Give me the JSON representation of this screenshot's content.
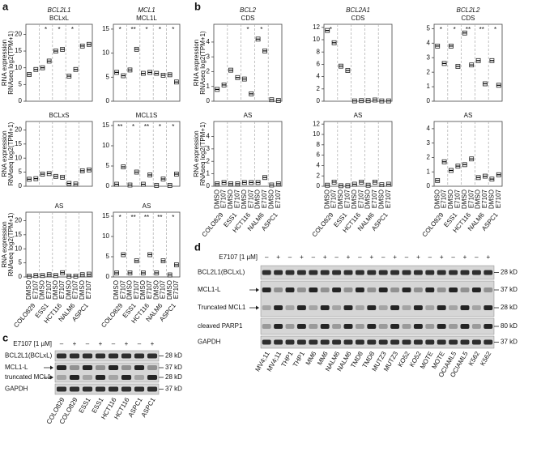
{
  "panel_a": {
    "label": "a",
    "y_label": [
      "RNA expression",
      "RNAseq log2(TPM+1)"
    ],
    "conditions": [
      "DMSO",
      "E7107"
    ],
    "cell_lines": [
      "COLO829",
      "ESS1",
      "HCT116",
      "NALM6",
      "ASPC1"
    ],
    "plots": [
      {
        "gene": "BCL2L1",
        "title": "BCLxL",
        "ylim": [
          0,
          23
        ],
        "yticks": [
          0,
          5,
          10,
          15,
          20
        ],
        "medians": [
          8,
          9.5,
          10,
          12,
          15,
          15.5,
          7.5,
          9.5,
          16.5,
          17
        ],
        "significance": [
          null,
          "*",
          "*",
          "*",
          null
        ],
        "significance_colors": [
          null,
          "#2a2ad4",
          "#e0201a",
          "#2a2ad4",
          null
        ]
      },
      {
        "gene": "MCL1",
        "title": "MCL1L",
        "ylim": [
          0,
          16
        ],
        "yticks": [
          0,
          5,
          10,
          15
        ],
        "medians": [
          6,
          5.3,
          6.5,
          10.8,
          5.8,
          6,
          5.8,
          5.4,
          5.5,
          4
        ],
        "significance": [
          "*",
          "**",
          "*",
          "*",
          "*"
        ],
        "significance_colors": [
          "#e0201a",
          "#e0201a",
          "#e0201a",
          "#e0201a",
          "#e0201a"
        ]
      },
      {
        "title": "BCLxS",
        "ylim": [
          0,
          23
        ],
        "yticks": [
          0,
          5,
          10,
          15,
          20
        ],
        "medians": [
          2.5,
          2.7,
          4.3,
          4.5,
          3.5,
          3.2,
          1,
          0.8,
          5.5,
          5.8
        ]
      },
      {
        "title": "MCL1S",
        "ylim": [
          0,
          16
        ],
        "yticks": [
          0,
          5,
          10,
          15
        ],
        "medians": [
          0.5,
          4.8,
          0.3,
          3.5,
          0.5,
          2.8,
          0.2,
          1.8,
          0.2,
          3
        ],
        "significance": [
          "**",
          "*",
          "**",
          "*",
          "*"
        ],
        "significance_colors": [
          "#e0201a",
          "#e0201a",
          "#e0201a",
          "#e0201a",
          "#e0201a"
        ]
      },
      {
        "title": "AS",
        "ylim": [
          0,
          23
        ],
        "yticks": [
          0,
          5,
          10,
          15,
          20
        ],
        "medians": [
          0.3,
          0.5,
          0.5,
          0.8,
          0.5,
          1.5,
          0.3,
          0.3,
          0.8,
          1
        ]
      },
      {
        "title": "AS",
        "ylim": [
          0,
          16
        ],
        "yticks": [
          0,
          5,
          10,
          15
        ],
        "medians": [
          1,
          5.5,
          1,
          4,
          1,
          5.5,
          1,
          4,
          0.5,
          3
        ],
        "significance": [
          "*",
          "**",
          "**",
          "**",
          "*"
        ],
        "significance_colors": [
          "#e0201a",
          "#e0201a",
          "#e0201a",
          "#e0201a",
          "#e0201a"
        ]
      }
    ]
  },
  "panel_b": {
    "label": "b",
    "y_label": [
      "RNA expression",
      "RNAseq log2(TPM+1)"
    ],
    "conditions": [
      "DMSO",
      "E7107"
    ],
    "cell_lines": [
      "COLO829",
      "ESS1",
      "HCT116",
      "NALM6",
      "ASPC1"
    ],
    "plots": [
      {
        "gene": "BCL2",
        "title": "CDS",
        "ylim": [
          0,
          5.2
        ],
        "yticks": [
          0,
          1,
          2,
          3,
          4
        ],
        "medians": [
          0.8,
          1.1,
          2.1,
          1.6,
          1.5,
          0.5,
          4.2,
          3.4,
          0.1,
          0.05
        ],
        "significance": [
          null,
          null,
          "*",
          "*",
          null
        ],
        "significance_colors": [
          null,
          null,
          "#e0201a",
          "#e0201a",
          null
        ]
      },
      {
        "gene": "BCL2A1",
        "title": "CDS",
        "ylim": [
          0,
          12.5
        ],
        "yticks": [
          0,
          2,
          4,
          6,
          8,
          10,
          12
        ],
        "medians": [
          11.5,
          9.5,
          5.7,
          5,
          0.05,
          0.1,
          0.1,
          0.2,
          0.05,
          0.05
        ],
        "significance": [
          "*",
          null,
          null,
          null,
          null
        ],
        "significance_colors": [
          "#e0201a",
          null,
          null,
          null,
          null
        ]
      },
      {
        "gene": "BCL2L2",
        "title": "CDS",
        "ylim": [
          0,
          5.3
        ],
        "yticks": [
          0,
          1,
          2,
          3,
          4,
          5
        ],
        "medians": [
          3.8,
          2.6,
          3.8,
          2.4,
          4.7,
          2.5,
          2.8,
          1.2,
          2.8,
          1.1
        ],
        "significance": [
          "*",
          "*",
          "**",
          "**",
          "*"
        ],
        "significance_colors": [
          "#e0201a",
          "#e0201a",
          "#e0201a",
          "#e0201a",
          "#e0201a"
        ]
      },
      {
        "title": "AS",
        "ylim": [
          0,
          5.2
        ],
        "yticks": [
          0,
          1,
          2,
          3,
          4
        ],
        "medians": [
          0.2,
          0.3,
          0.2,
          0.2,
          0.3,
          0.3,
          0.3,
          0.7,
          0.1,
          0.2
        ]
      },
      {
        "title": "AS",
        "ylim": [
          0,
          12.5
        ],
        "yticks": [
          0,
          2,
          4,
          6,
          8,
          10,
          12
        ],
        "medians": [
          0.2,
          0.8,
          0.1,
          0.1,
          0.4,
          0.8,
          0.2,
          0.8,
          0.3,
          0.4
        ]
      },
      {
        "title": "AS",
        "ylim": [
          0,
          4.5
        ],
        "yticks": [
          0,
          1,
          2,
          3,
          4
        ],
        "medians": [
          0.4,
          1.7,
          1.1,
          1.4,
          1.5,
          1.9,
          0.6,
          0.7,
          0.5,
          0.8
        ]
      }
    ]
  },
  "panel_c": {
    "label": "c",
    "treatment": "E7107 [1 µM]",
    "signs": [
      "–",
      "+",
      "–",
      "+",
      "–",
      "+",
      "–",
      "+"
    ],
    "lanes": [
      "COLO829",
      "COLO829",
      "ESS1",
      "ESS1",
      "HCT116",
      "HCT116",
      "ASPC1",
      "ASPC1"
    ],
    "rows": [
      {
        "labels": [
          "BCL2L1(BCLxL)"
        ],
        "markers": [
          "28 kD"
        ]
      },
      {
        "labels": [
          "MCL1-L",
          "truncated MCL1"
        ],
        "markers": [
          "37 kD",
          "28 kD"
        ]
      },
      {
        "labels": [
          "GAPDH"
        ],
        "markers": [
          "37 kD"
        ]
      }
    ]
  },
  "panel_d": {
    "label": "d",
    "treatment": "E7107 [1 µM]",
    "signs": [
      "–",
      "+",
      "–",
      "+",
      "–",
      "+",
      "–",
      "+",
      "–",
      "+",
      "–",
      "+",
      "–",
      "+",
      "–",
      "+",
      "–",
      "+",
      "–",
      "+"
    ],
    "lanes": [
      "MV4;11",
      "MV4;11",
      "THP1",
      "THP1",
      "MM6",
      "MM6",
      "NALM6",
      "NALM6",
      "TMD8",
      "TMD8",
      "MUTZ3",
      "MUTZ3",
      "KO52",
      "KO52",
      "MOTE",
      "MOTE",
      "OCIAML5",
      "OCIAML5",
      "K562",
      "K562"
    ],
    "rows": [
      {
        "labels": [
          "BCL2L1(BCLxL)"
        ],
        "markers": [
          "28 kD"
        ]
      },
      {
        "labels": [
          "MCL1-L",
          "Truncated MCL1"
        ],
        "markers": [
          "37 kD",
          "28 kD"
        ]
      },
      {
        "labels": [
          "cleaved PARP1"
        ],
        "markers": [
          "80 kD"
        ]
      },
      {
        "labels": [
          "GAPDH"
        ],
        "markers": [
          "37 kD"
        ]
      }
    ]
  }
}
